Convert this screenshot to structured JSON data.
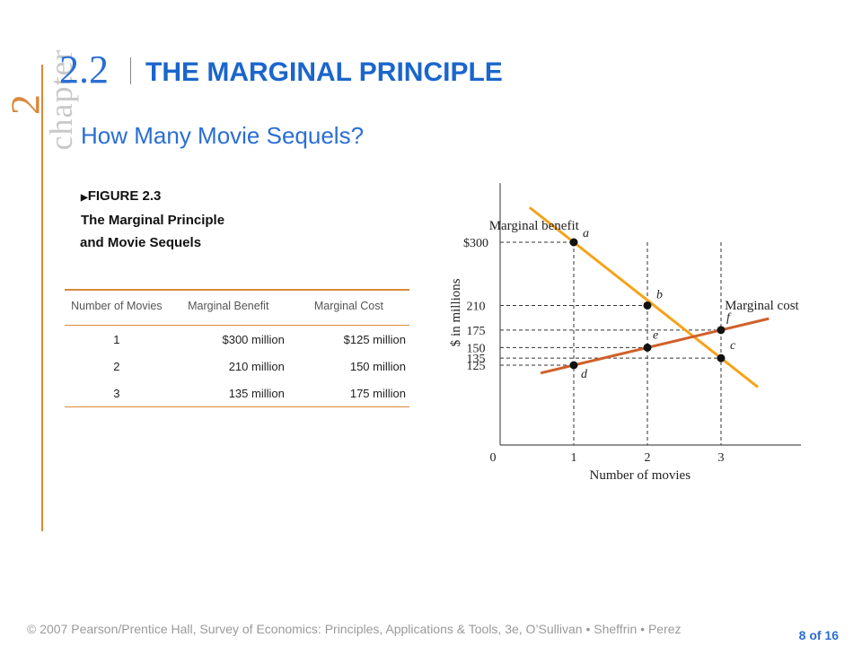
{
  "chapter": {
    "word": "chapter",
    "number": "2"
  },
  "section": {
    "number": "2.2",
    "title": "THE MARGINAL PRINCIPLE"
  },
  "subtitle": "How Many Movie Sequels?",
  "figure": {
    "label": "FIGURE 2.3",
    "line2": "The Marginal Principle",
    "line3": "and Movie Sequels"
  },
  "table": {
    "headers": [
      "Number of Movies",
      "Marginal Benefit",
      "Marginal Cost"
    ],
    "rows": [
      [
        "1",
        "$300 million",
        "$125 million"
      ],
      [
        "2",
        "210 million",
        "150 million"
      ],
      [
        "3",
        "135 million",
        "175 million"
      ]
    ]
  },
  "chart_data": {
    "type": "line",
    "xlabel": "Number of movies",
    "ylabel": "$ in millions",
    "xticks": [
      "0",
      "1",
      "2",
      "3"
    ],
    "yticks": [
      "$300",
      "210",
      "175",
      "150",
      "135",
      "125"
    ],
    "series": [
      {
        "name": "Marginal benefit",
        "color": "#f5a31a",
        "points": [
          {
            "x": 1,
            "y": 300,
            "label": "a"
          },
          {
            "x": 2,
            "y": 210,
            "label": "b"
          },
          {
            "x": 3,
            "y": 135,
            "label": "c"
          }
        ]
      },
      {
        "name": "Marginal cost",
        "color": "#d0602a",
        "points": [
          {
            "x": 1,
            "y": 125,
            "label": "d"
          },
          {
            "x": 2,
            "y": 150,
            "label": "e"
          },
          {
            "x": 3,
            "y": 175,
            "label": "f"
          }
        ]
      }
    ]
  },
  "footer": {
    "copyright": "© 2007 Pearson/Prentice Hall, Survey of Economics: Principles, Applications & Tools, 3e, O’Sullivan • Sheffrin • Perez",
    "page": "8 of 16"
  }
}
